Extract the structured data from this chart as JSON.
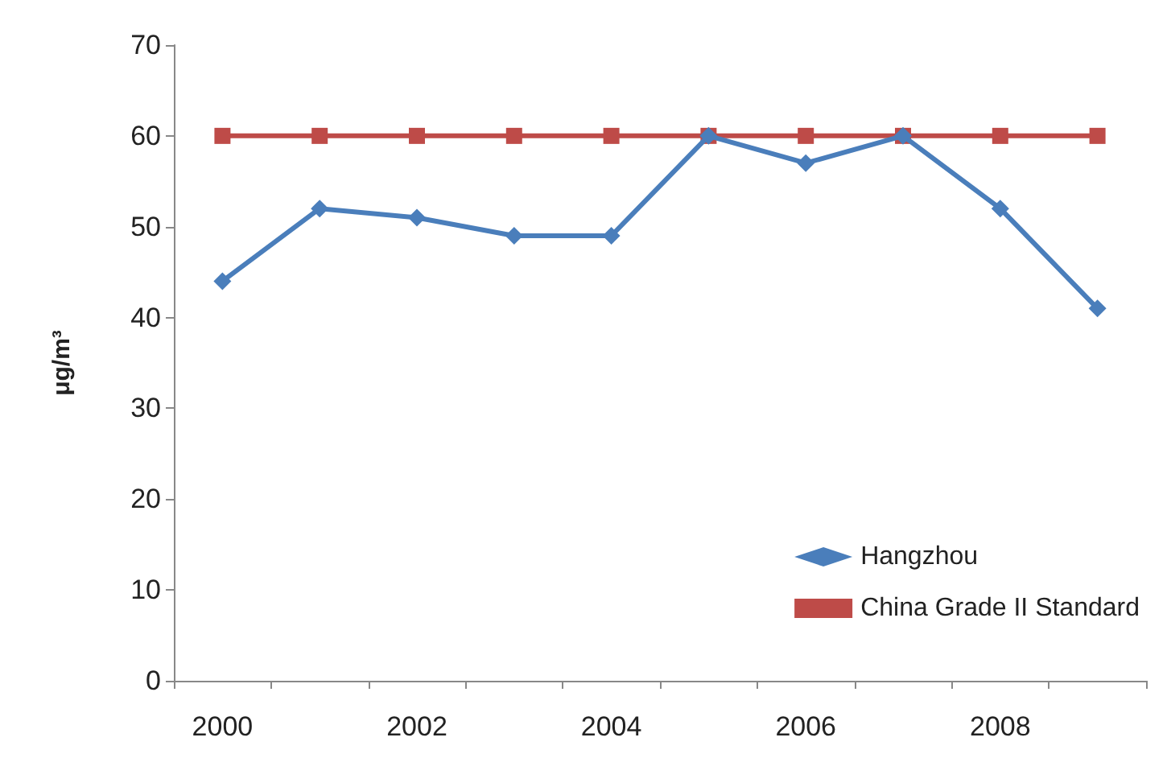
{
  "chart_data": {
    "type": "line",
    "ylabel": "μg/m³",
    "categories": [
      "2000",
      null,
      "2002",
      null,
      "2004",
      null,
      "2006",
      null,
      "2008",
      null
    ],
    "series": [
      {
        "name": "Hangzhou",
        "color": "#4a7ebb",
        "marker": "diamond",
        "values": [
          44,
          52,
          51,
          49,
          49,
          60,
          57,
          60,
          52,
          41
        ]
      },
      {
        "name": "China Grade II Standard",
        "color": "#be4b48",
        "marker": "square",
        "values": [
          60,
          60,
          60,
          60,
          60,
          60,
          60,
          60,
          60,
          60
        ]
      }
    ],
    "ylim": [
      0,
      70
    ],
    "yticks": [
      0,
      10,
      20,
      30,
      40,
      50,
      60,
      70
    ],
    "grid": false,
    "legend": "bottom right",
    "line_style": "solid"
  }
}
